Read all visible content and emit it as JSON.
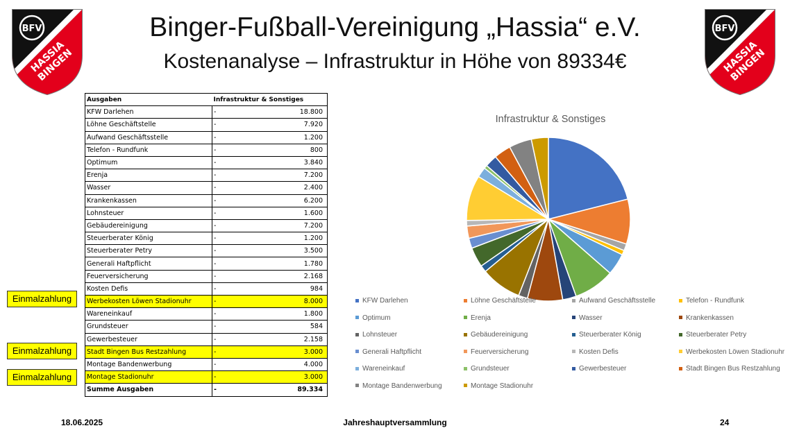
{
  "header": {
    "title": "Binger-Fußball-Vereinigung „Hassia“ e.V.",
    "subtitle": "Kostenanalyse – Infrastruktur in Höhe von 89334€"
  },
  "logo": {
    "text_top": "BFV",
    "text_line1": "HASSIA",
    "text_line2": "BINGEN",
    "colors": {
      "black": "#111111",
      "red": "#e3001b",
      "white": "#ffffff"
    }
  },
  "table": {
    "header_name": "Ausgaben",
    "header_value": "Infrastruktur & Sonstiges",
    "dash": "-",
    "rows": [
      {
        "name": "KFW Darlehen",
        "value": "18.800"
      },
      {
        "name": "Löhne Geschäftstelle",
        "value": "7.920"
      },
      {
        "name": "Aufwand Geschäftsstelle",
        "value": "1.200"
      },
      {
        "name": "Telefon - Rundfunk",
        "value": "800"
      },
      {
        "name": "Optimum",
        "value": "3.840"
      },
      {
        "name": "Erenja",
        "value": "7.200"
      },
      {
        "name": "Wasser",
        "value": "2.400"
      },
      {
        "name": "Krankenkassen",
        "value": "6.200"
      },
      {
        "name": "Lohnsteuer",
        "value": "1.600"
      },
      {
        "name": "Gebäudereinigung",
        "value": "7.200"
      },
      {
        "name": "Steuerberater König",
        "value": "1.200"
      },
      {
        "name": "Steuerberater Petry",
        "value": "3.500"
      },
      {
        "name": "Generali Haftpflicht",
        "value": "1.780"
      },
      {
        "name": "Feuerversicherung",
        "value": "2.168"
      },
      {
        "name": "Kosten Defis",
        "value": "984"
      },
      {
        "name": "Werbekosten Löwen Stadionuhr",
        "value": "8.000",
        "highlight": true
      },
      {
        "name": "Wareneinkauf",
        "value": "1.800"
      },
      {
        "name": "Grundsteuer",
        "value": "584"
      },
      {
        "name": "Gewerbesteuer",
        "value": "2.158"
      },
      {
        "name": "Stadt Bingen Bus Restzahlung",
        "value": "3.000",
        "highlight": true
      },
      {
        "name": "Montage Bandenwerbung",
        "value": "4.000"
      },
      {
        "name": "Montage Stadionuhr",
        "value": "3.000",
        "highlight": true
      }
    ],
    "sum_name": "Summe Ausgaben",
    "sum_value": "89.334"
  },
  "tags": {
    "label": "Einmalzahlung"
  },
  "colors": {
    "highlight": "#ffff00"
  },
  "chart_data": {
    "type": "pie",
    "title": "Infrastruktur & Sonstiges",
    "legend_position": "bottom",
    "categories": [
      "KFW Darlehen",
      "Löhne Geschäftstelle",
      "Aufwand Geschäftsstelle",
      "Telefon - Rundfunk",
      "Optimum",
      "Erenja",
      "Wasser",
      "Krankenkassen",
      "Lohnsteuer",
      "Gebäudereinigung",
      "Steuerberater König",
      "Steuerberater Petry",
      "Generali Haftpflicht",
      "Feuerversicherung",
      "Kosten Defis",
      "Werbekosten Löwen Stadionuhr",
      "Wareneinkauf",
      "Grundsteuer",
      "Gewerbesteuer",
      "Stadt Bingen Bus Restzahlung",
      "Montage Bandenwerbung",
      "Montage Stadionuhr"
    ],
    "values": [
      18800,
      7920,
      1200,
      800,
      3840,
      7200,
      2400,
      6200,
      1600,
      7200,
      1200,
      3500,
      1780,
      2168,
      984,
      8000,
      1800,
      584,
      2158,
      3000,
      4000,
      3000
    ],
    "colors": [
      "#4472c4",
      "#ed7d31",
      "#a5a5a5",
      "#ffc000",
      "#5b9bd5",
      "#70ad47",
      "#264478",
      "#9e480e",
      "#636363",
      "#997300",
      "#255e91",
      "#43682b",
      "#698ed0",
      "#f1975a",
      "#b7b7b7",
      "#ffcd33",
      "#7cafdd",
      "#8cc168",
      "#335aa1",
      "#d26012",
      "#828282",
      "#cc9a00"
    ]
  },
  "footer": {
    "date": "18.06.2025",
    "event": "Jahreshauptversammlung",
    "page": "24"
  }
}
